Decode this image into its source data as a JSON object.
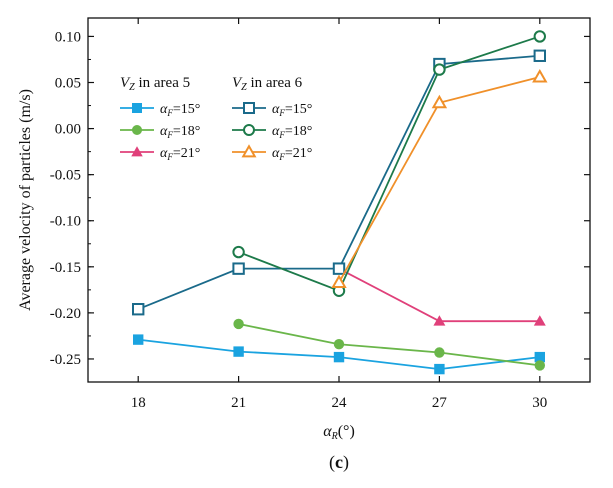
{
  "chart_data": {
    "type": "line",
    "title": "",
    "caption": {
      "open": "(",
      "letter": "c",
      "close": ")"
    },
    "ylabel": "Average velocity of particles (m/s)",
    "xlabel": {
      "main": "α",
      "sub": "R",
      "suffix": "(°)"
    },
    "categories": [
      18,
      21,
      24,
      27,
      30
    ],
    "xlim": [
      16.5,
      31.5
    ],
    "ylim": [
      -0.275,
      0.12
    ],
    "yticks": [
      0.1,
      0.05,
      0.0,
      -0.05,
      -0.1,
      -0.15,
      -0.2,
      -0.25
    ],
    "ytick_labels": [
      "0.10",
      "0.05",
      "0.00",
      "-0.05",
      "-0.10",
      "-0.15",
      "-0.20",
      "-0.25"
    ],
    "xtick_labels": [
      "18",
      "21",
      "24",
      "27",
      "30"
    ],
    "legend": {
      "placement": "top-left",
      "group_titles": [
        {
          "main": "V",
          "sub": "Z",
          "text": " in area 5"
        },
        {
          "main": "V",
          "sub": "Z",
          "text": " in area 6"
        }
      ]
    },
    "series": [
      {
        "name": "αF=15° (area 5)",
        "label_main": "α",
        "label_sub": "F",
        "label_text": "=15°",
        "group": 0,
        "color": "#1aa3e0",
        "marker": "square",
        "filled": true,
        "x": [
          18,
          21,
          24,
          27,
          30
        ],
        "values": [
          -0.229,
          -0.242,
          -0.248,
          -0.261,
          -0.248
        ]
      },
      {
        "name": "αF=18° (area 5)",
        "label_main": "α",
        "label_sub": "F",
        "label_text": "=18°",
        "group": 0,
        "color": "#6ab64a",
        "marker": "circle",
        "filled": true,
        "x": [
          21,
          24,
          27,
          30
        ],
        "values": [
          -0.212,
          -0.234,
          -0.243,
          -0.257
        ]
      },
      {
        "name": "αF=21° (area 5)",
        "label_main": "α",
        "label_sub": "F",
        "label_text": "=21°",
        "group": 0,
        "color": "#e0407a",
        "marker": "triangle",
        "filled": true,
        "x": [
          24,
          27,
          30
        ],
        "values": [
          -0.152,
          -0.209,
          -0.209
        ]
      },
      {
        "name": "αF=15° (area 6)",
        "label_main": "α",
        "label_sub": "F",
        "label_text": "=15°",
        "group": 1,
        "color": "#1a6a8a",
        "marker": "square",
        "filled": false,
        "x": [
          18,
          21,
          24,
          27,
          30
        ],
        "values": [
          -0.196,
          -0.152,
          -0.152,
          0.07,
          0.079
        ]
      },
      {
        "name": "αF=18° (area 6)",
        "label_main": "α",
        "label_sub": "F",
        "label_text": "=18°",
        "group": 1,
        "color": "#1d7a4a",
        "marker": "circle",
        "filled": false,
        "x": [
          21,
          24,
          27,
          30
        ],
        "values": [
          -0.134,
          -0.176,
          0.064,
          0.1
        ]
      },
      {
        "name": "αF=21° (area 6)",
        "label_main": "α",
        "label_sub": "F",
        "label_text": "=21°",
        "group": 1,
        "color": "#f0902a",
        "marker": "triangle",
        "filled": false,
        "x": [
          24,
          27,
          30
        ],
        "values": [
          -0.167,
          0.028,
          0.056
        ]
      }
    ]
  }
}
